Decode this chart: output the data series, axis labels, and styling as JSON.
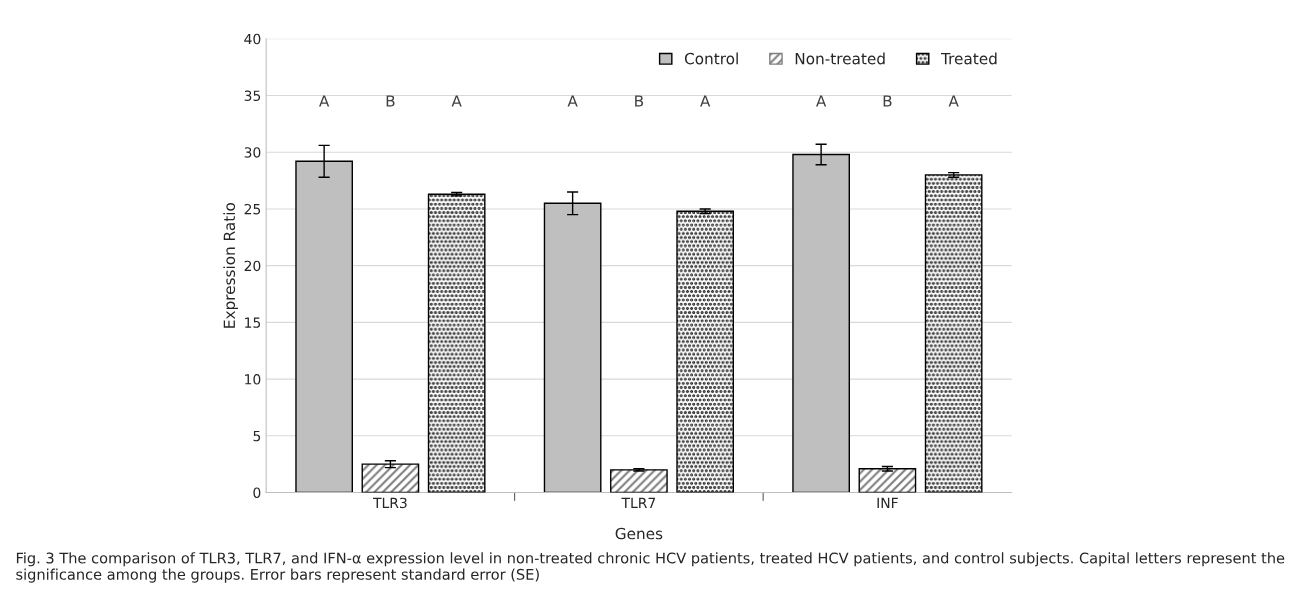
{
  "chart_data": {
    "type": "bar",
    "xlabel": "Genes",
    "ylabel": "Expression Ratio",
    "categories": [
      "TLR3",
      "TLR7",
      "INF"
    ],
    "series": [
      {
        "name": "Control",
        "color": "#bfbfbf",
        "values": [
          29.2,
          25.5,
          29.8
        ],
        "errors": [
          1.4,
          1.0,
          0.9
        ]
      },
      {
        "name": "Non-treated",
        "color": "#7f7f7f",
        "values": [
          2.5,
          2.0,
          2.1
        ],
        "errors": [
          0.3,
          0.1,
          0.2
        ]
      },
      {
        "name": "Treated",
        "color": "#000000",
        "values": [
          26.3,
          24.8,
          28.0
        ],
        "errors": [
          0.15,
          0.2,
          0.2
        ]
      }
    ],
    "ylim": [
      0,
      40
    ],
    "yticks": [
      0,
      5,
      10,
      15,
      20,
      25,
      30,
      35,
      40
    ],
    "grid": "y",
    "legend": "top right",
    "annotations": [
      "A",
      "B",
      "A",
      "A",
      "B",
      "A",
      "A",
      "B",
      "A",
      "Fig. 3 The comparison of TLR3, TLR7, and IFN-α expression level in non-treated chronic HCV patients, treated HCV patients, and control subjects. Capital letters represent the significance among the groups. Error bars represent standard error (SE)"
    ]
  }
}
